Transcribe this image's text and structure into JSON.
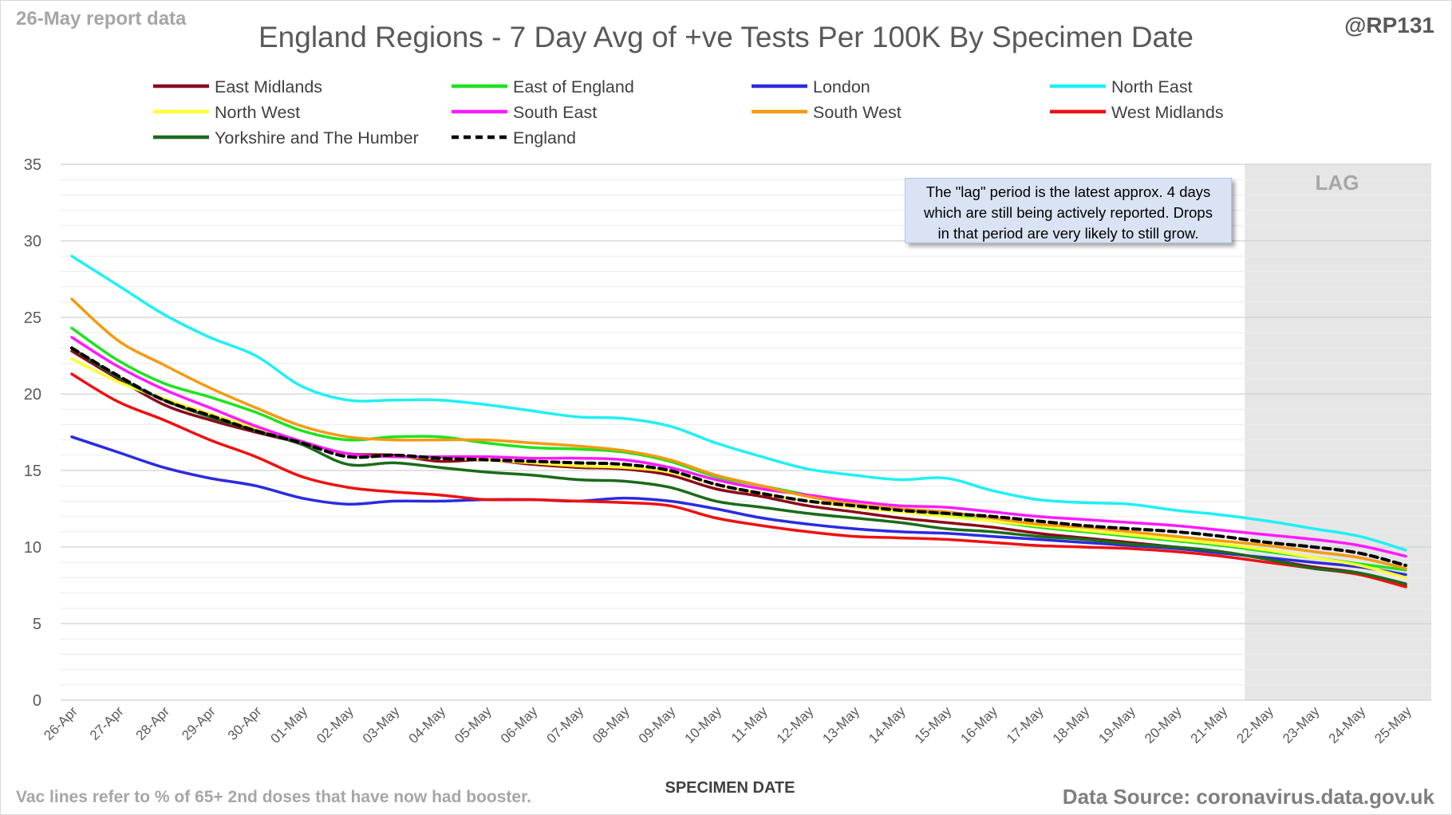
{
  "header": {
    "report_label": "26-May report data",
    "handle": "@RP131",
    "title": "England Regions - 7 Day Avg of +ve Tests Per 100K By Specimen Date"
  },
  "footer": {
    "vac_note": "Vac lines refer to % of 65+ 2nd doses that have now had booster.",
    "source": "Data Source: coronavirus.data.gov.uk"
  },
  "annotation": {
    "line1": "The \"lag\" period is the latest approx. 4 days",
    "line2": "which are still being actively reported. Drops",
    "line3": "in that period are very likely to still grow."
  },
  "chart_data": {
    "type": "line",
    "title": "England Regions - 7 Day Avg of +ve Tests Per 100K By Specimen Date",
    "xlabel": "SPECIMEN DATE",
    "ylabel": "",
    "ylim": [
      0,
      35
    ],
    "yticks": [
      0,
      5,
      10,
      15,
      20,
      25,
      30,
      35
    ],
    "grid": true,
    "legend_position": "top",
    "lag_label": "LAG",
    "lag_start": "21-May",
    "x": [
      "26-Apr",
      "27-Apr",
      "28-Apr",
      "29-Apr",
      "30-Apr",
      "01-May",
      "02-May",
      "03-May",
      "04-May",
      "05-May",
      "06-May",
      "07-May",
      "08-May",
      "09-May",
      "10-May",
      "11-May",
      "12-May",
      "13-May",
      "14-May",
      "15-May",
      "16-May",
      "17-May",
      "18-May",
      "19-May",
      "20-May",
      "21-May",
      "22-May",
      "23-May",
      "24-May",
      "25-May"
    ],
    "series": [
      {
        "name": "East Midlands",
        "color": "#8b0a1a",
        "dash": false,
        "values": [
          22.8,
          21.0,
          19.3,
          18.3,
          17.5,
          16.8,
          16.1,
          16.0,
          15.6,
          15.7,
          15.4,
          15.2,
          15.1,
          14.7,
          13.8,
          13.3,
          12.7,
          12.3,
          11.9,
          11.6,
          11.3,
          10.9,
          10.6,
          10.3,
          10.0,
          9.7,
          9.2,
          8.7,
          8.3,
          7.5
        ]
      },
      {
        "name": "East of England",
        "color": "#1ee21e",
        "dash": false,
        "values": [
          24.3,
          22.2,
          20.7,
          19.8,
          18.8,
          17.6,
          17.0,
          17.2,
          17.2,
          16.8,
          16.5,
          16.4,
          16.2,
          15.6,
          14.6,
          14.0,
          13.4,
          12.8,
          12.5,
          12.1,
          11.7,
          11.3,
          11.0,
          10.7,
          10.4,
          10.1,
          9.7,
          9.3,
          8.9,
          8.5
        ]
      },
      {
        "name": "London",
        "color": "#2b2be0",
        "dash": false,
        "values": [
          17.2,
          16.2,
          15.2,
          14.5,
          14.0,
          13.2,
          12.8,
          13.0,
          13.0,
          13.1,
          13.1,
          13.0,
          13.2,
          13.0,
          12.5,
          11.9,
          11.5,
          11.2,
          11.0,
          10.9,
          10.7,
          10.5,
          10.3,
          10.1,
          9.9,
          9.6,
          9.3,
          9.0,
          8.7,
          8.2
        ]
      },
      {
        "name": "North East",
        "color": "#1ff0f5",
        "dash": false,
        "values": [
          29.0,
          27.1,
          25.2,
          23.7,
          22.5,
          20.5,
          19.6,
          19.6,
          19.6,
          19.3,
          18.9,
          18.5,
          18.4,
          17.9,
          16.8,
          15.9,
          15.1,
          14.7,
          14.4,
          14.5,
          13.7,
          13.1,
          12.9,
          12.8,
          12.4,
          12.1,
          11.7,
          11.2,
          10.7,
          9.8
        ]
      },
      {
        "name": "North West",
        "color": "#ffff33",
        "dash": false,
        "values": [
          22.3,
          20.8,
          19.7,
          18.7,
          17.8,
          16.9,
          16.0,
          15.9,
          15.8,
          15.7,
          15.5,
          15.3,
          15.2,
          14.9,
          14.1,
          13.5,
          13.0,
          12.6,
          12.3,
          12.0,
          11.7,
          11.4,
          11.1,
          10.8,
          10.5,
          10.2,
          9.8,
          9.3,
          8.8,
          8.0
        ]
      },
      {
        "name": "South East",
        "color": "#ff1aff",
        "dash": false,
        "values": [
          23.7,
          21.8,
          20.3,
          19.1,
          17.9,
          16.9,
          16.1,
          15.9,
          15.9,
          15.9,
          15.8,
          15.8,
          15.7,
          15.2,
          14.4,
          13.8,
          13.4,
          13.0,
          12.7,
          12.6,
          12.3,
          12.0,
          11.8,
          11.6,
          11.4,
          11.1,
          10.8,
          10.5,
          10.1,
          9.4
        ]
      },
      {
        "name": "South West",
        "color": "#f59a10",
        "dash": false,
        "values": [
          26.2,
          23.5,
          21.9,
          20.4,
          19.1,
          17.9,
          17.2,
          17.0,
          17.0,
          17.0,
          16.8,
          16.6,
          16.3,
          15.7,
          14.7,
          14.0,
          13.3,
          12.8,
          12.5,
          12.3,
          11.9,
          11.5,
          11.3,
          11.0,
          10.7,
          10.4,
          10.1,
          9.7,
          9.3,
          8.6
        ]
      },
      {
        "name": "West Midlands",
        "color": "#ee1111",
        "dash": false,
        "values": [
          21.3,
          19.5,
          18.3,
          17.0,
          15.9,
          14.6,
          13.9,
          13.6,
          13.4,
          13.1,
          13.1,
          13.0,
          12.9,
          12.7,
          11.9,
          11.4,
          11.0,
          10.7,
          10.6,
          10.5,
          10.3,
          10.1,
          10.0,
          9.9,
          9.7,
          9.4,
          9.0,
          8.6,
          8.2,
          7.4
        ]
      },
      {
        "name": "Yorkshire and The Humber",
        "color": "#1a6b1a",
        "dash": false,
        "values": [
          23.0,
          21.1,
          19.6,
          18.5,
          17.6,
          16.7,
          15.4,
          15.5,
          15.2,
          14.9,
          14.7,
          14.4,
          14.3,
          13.9,
          13.0,
          12.6,
          12.2,
          11.9,
          11.6,
          11.2,
          11.0,
          10.7,
          10.5,
          10.2,
          10.0,
          9.7,
          9.2,
          8.6,
          8.3,
          7.6
        ]
      },
      {
        "name": "England",
        "color": "#000000",
        "dash": true,
        "values": [
          23.0,
          21.2,
          19.6,
          18.6,
          17.6,
          16.8,
          15.9,
          16.0,
          15.8,
          15.7,
          15.6,
          15.5,
          15.4,
          15.0,
          14.1,
          13.5,
          13.0,
          12.7,
          12.4,
          12.2,
          12.0,
          11.7,
          11.4,
          11.2,
          11.0,
          10.7,
          10.3,
          10.0,
          9.6,
          8.8
        ]
      }
    ]
  }
}
